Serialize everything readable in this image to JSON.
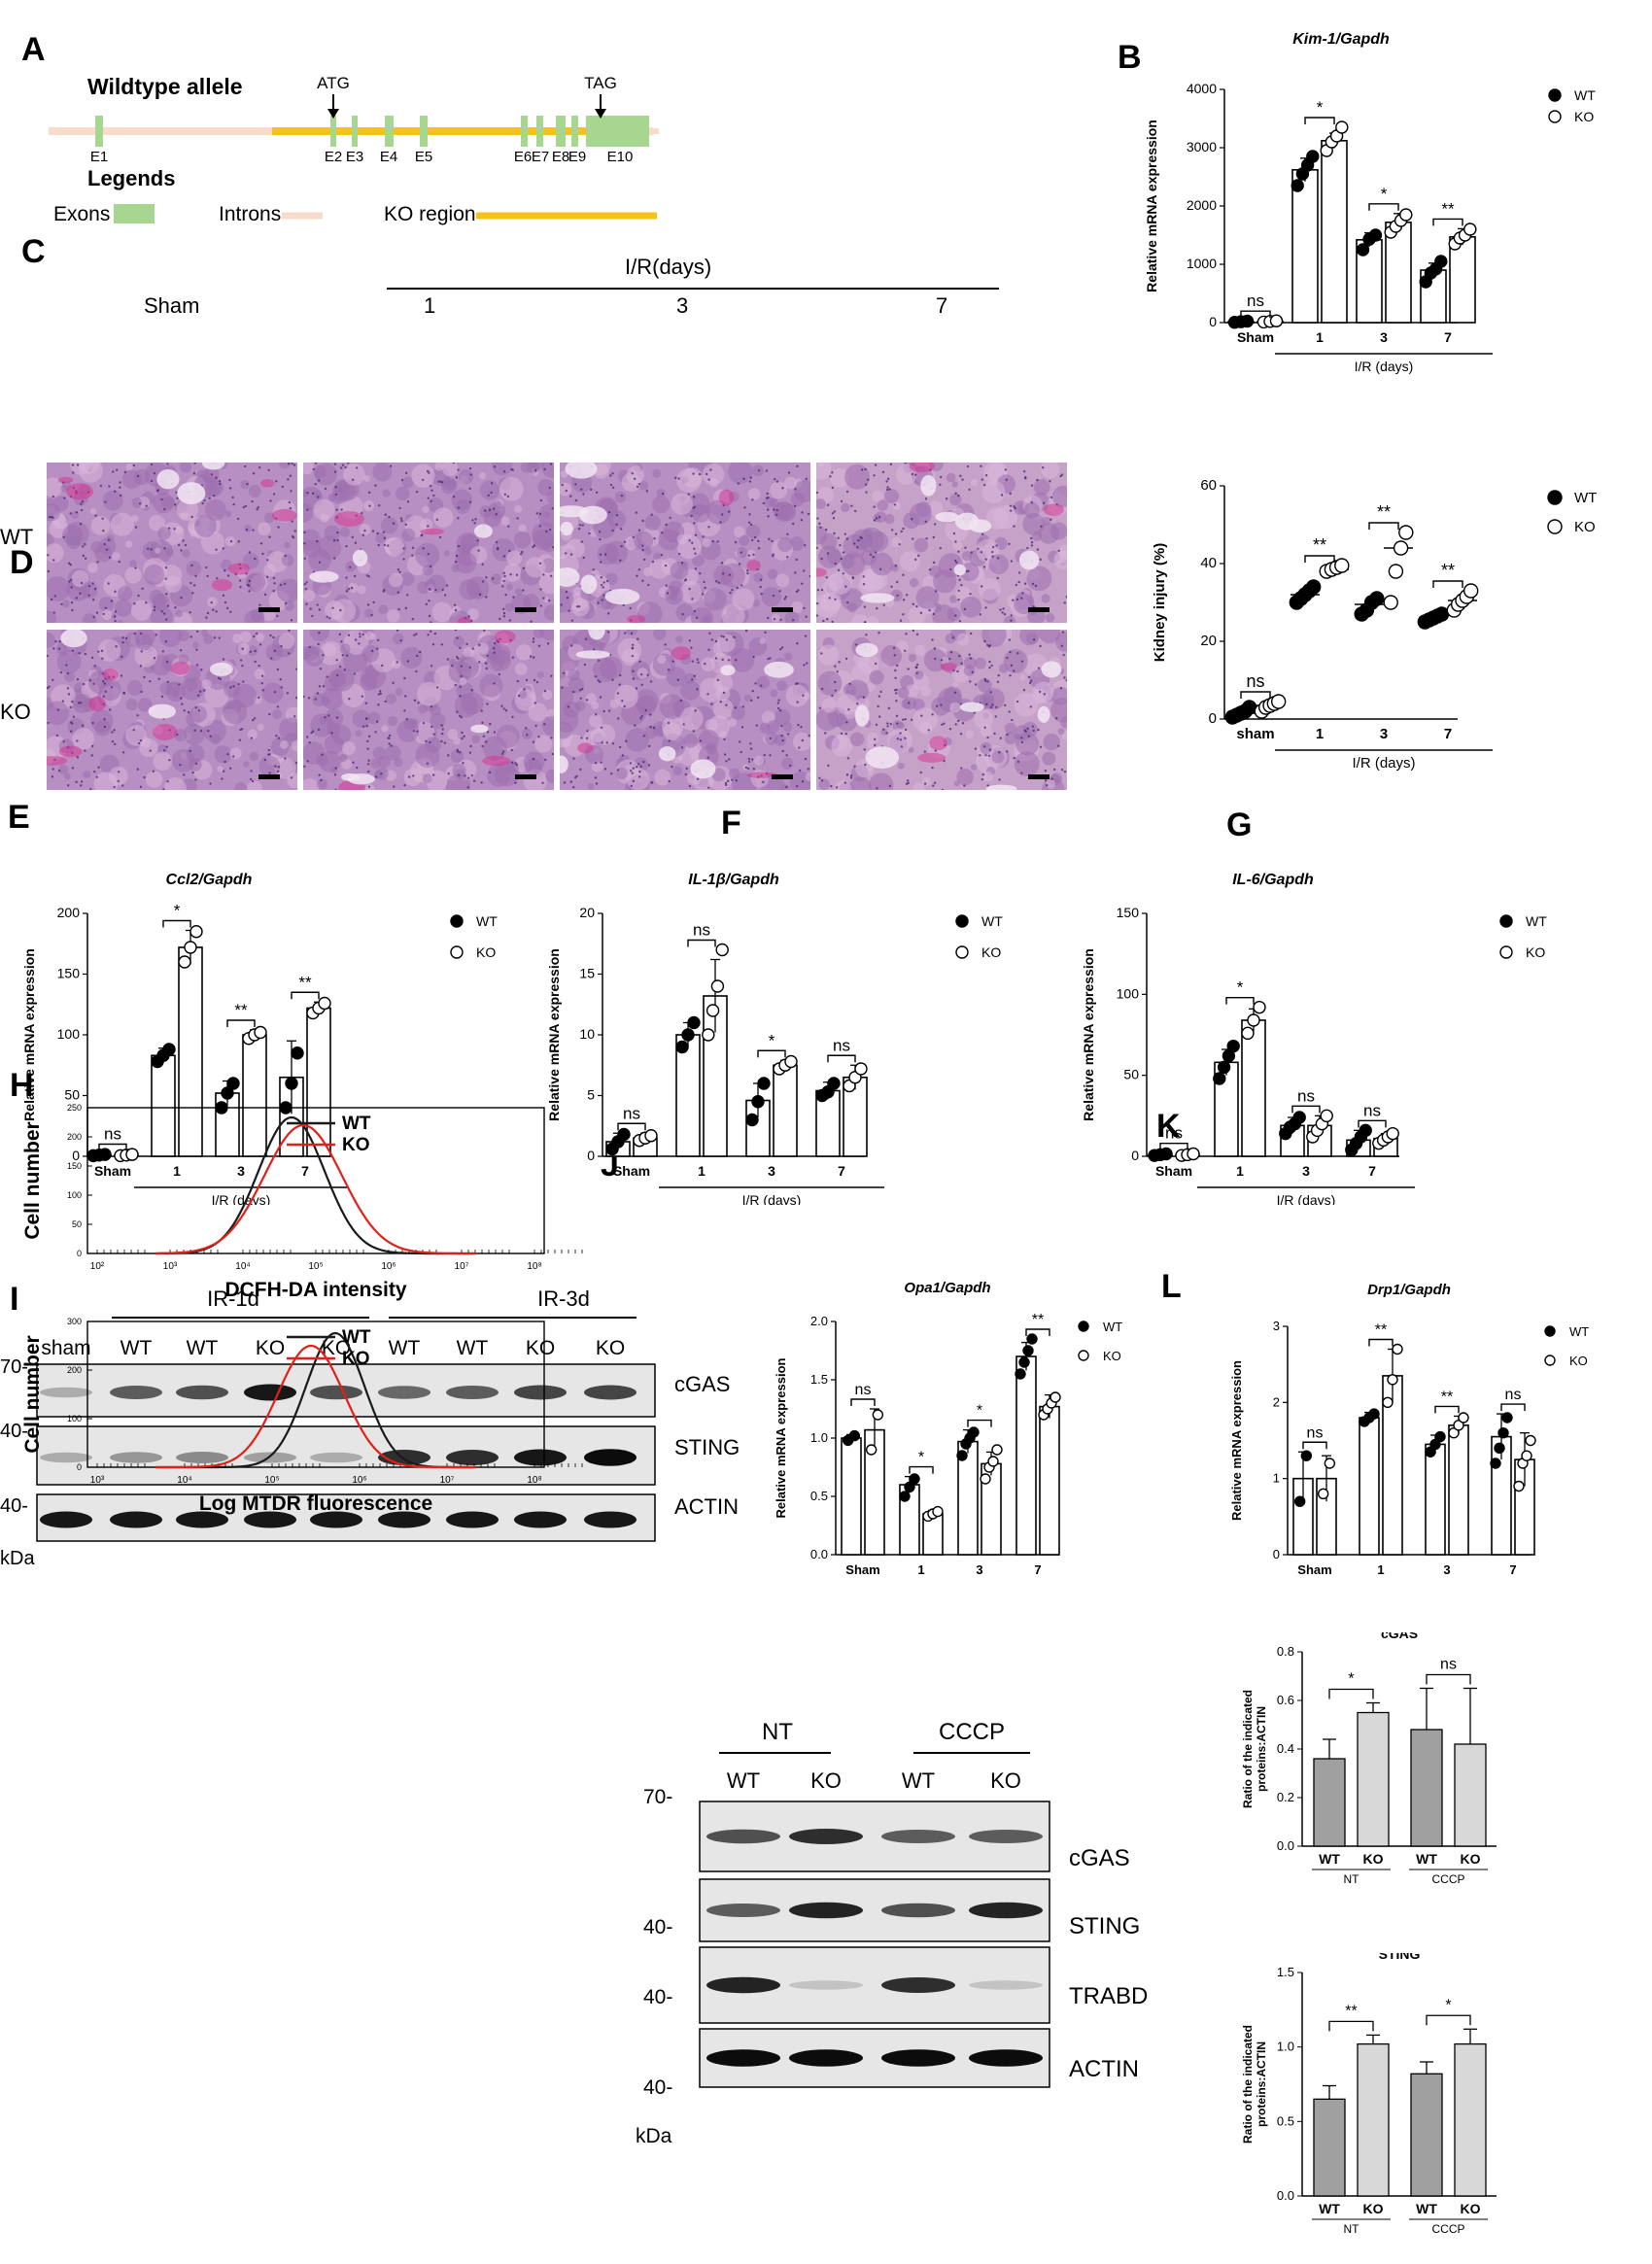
{
  "figure": {
    "panel_labels": {
      "A": "A",
      "B": "B",
      "C": "C",
      "D": "D",
      "E": "E",
      "F": "F",
      "G": "G",
      "H": "H",
      "I": "I",
      "J": "J",
      "K": "K",
      "L": "L"
    }
  },
  "panelA": {
    "title": "Wildtype allele",
    "atg": "ATG",
    "tag": "TAG",
    "exons": [
      "E1",
      "E2",
      "E3",
      "E4",
      "E5",
      "E6",
      "E7",
      "E8",
      "E9",
      "E10"
    ],
    "legends_title": "Legends",
    "legend_exons": "Exons",
    "legend_introns": "Introns",
    "legend_ko": "KO region",
    "colors": {
      "exon": "#a6d68f",
      "intron": "#f8dccb",
      "ko": "#f5c21b"
    }
  },
  "panelC": {
    "ir_label": "I/R(days)",
    "columns": [
      "Sham",
      "1",
      "3",
      "7"
    ],
    "rows": [
      "WT",
      "KO"
    ]
  },
  "panelE": {
    "groups": [
      "IR-1d",
      "IR-3d"
    ],
    "lanes": [
      "sham",
      "WT",
      "WT",
      "KO",
      "KO",
      "WT",
      "WT",
      "KO",
      "KO"
    ],
    "markers": [
      "70-",
      "40-",
      "40-"
    ],
    "bands": [
      "cGAS",
      "STING",
      "ACTIN"
    ],
    "unit": "kDa"
  },
  "panelH": {
    "xlabel": "DCFH-DA intensity",
    "ylabel": "Cell number",
    "legend": [
      "WT",
      "KO"
    ],
    "yticks": [
      "0",
      "50",
      "100",
      "150",
      "200",
      "250"
    ],
    "xticks": [
      "10²",
      "10³",
      "10⁴",
      "10⁵",
      "10⁶",
      "10⁷",
      "10⁸"
    ]
  },
  "panelI": {
    "xlabel": "Log MTDR fluorescence",
    "ylabel": "Cell number",
    "legend": [
      "WT",
      "KO"
    ],
    "yticks": [
      "0",
      "100",
      "200",
      "300"
    ],
    "xticks": [
      "10³",
      "10⁴",
      "10⁵",
      "10⁶",
      "10⁷",
      "10⁸"
    ]
  },
  "panelJ": {
    "groups": [
      "NT",
      "CCCP"
    ],
    "lanes": [
      "WT",
      "KO",
      "WT",
      "KO"
    ],
    "markers": [
      "70-",
      "40-",
      "40-",
      "40-"
    ],
    "bands": [
      "cGAS",
      "STING",
      "TRABD",
      "ACTIN"
    ],
    "unit": "kDa"
  },
  "colors": {
    "wt_line": "#1a1a1a",
    "ko_line": "#e0211b",
    "bar_dark": "#a0a0a0",
    "bar_light": "#d8d8d8"
  },
  "chart_data": [
    {
      "id": "B",
      "type": "bar",
      "title": "Kim-1/Gapdh",
      "ylabel": "Relative mRNA expression",
      "xlabel": "I/R (days)",
      "categories": [
        "Sham",
        "1",
        "3",
        "7"
      ],
      "ylim": [
        0,
        4000
      ],
      "yticks": [
        "0",
        "1000",
        "2000",
        "3000",
        "4000"
      ],
      "legend": [
        "WT",
        "KO"
      ],
      "series": [
        {
          "name": "WT",
          "values": [
            15,
            2620,
            1420,
            900
          ]
        },
        {
          "name": "KO",
          "values": [
            20,
            3120,
            1720,
            1470
          ]
        }
      ],
      "errors": [
        [
          10,
          200,
          120,
          120
        ],
        [
          10,
          130,
          150,
          140
        ]
      ],
      "points": [
        [
          [
            5,
            15,
            25
          ],
          [
            2350,
            2550,
            2700,
            2850
          ],
          [
            1250,
            1430,
            1500
          ],
          [
            700,
            850,
            920,
            1050
          ]
        ],
        [
          [
            10,
            20,
            30
          ],
          [
            2950,
            3100,
            3200,
            3350
          ],
          [
            1550,
            1650,
            1750,
            1850
          ],
          [
            1350,
            1450,
            1500,
            1600
          ]
        ]
      ],
      "significance": [
        "ns",
        "*",
        "*",
        "**"
      ]
    },
    {
      "id": "C",
      "type": "scatter",
      "ylabel": "Kidney injury (%)",
      "xlabel": "I/R (days)",
      "categories": [
        "sham",
        "1",
        "3",
        "7"
      ],
      "ylim": [
        0,
        60
      ],
      "yticks": [
        "0",
        "20",
        "40",
        "60"
      ],
      "legend": [
        "WT",
        "KO"
      ],
      "series": [
        {
          "name": "WT",
          "values": [
            1.5,
            32,
            29.5,
            26
          ]
        },
        {
          "name": "KO",
          "values": [
            3.5,
            38.5,
            44,
            30.5
          ]
        }
      ],
      "points": [
        [
          [
            0.5,
            1,
            1.5,
            2,
            3
          ],
          [
            30,
            31,
            32,
            33,
            34
          ],
          [
            27,
            28,
            30,
            31
          ],
          [
            25,
            25.5,
            26,
            26.5,
            27
          ]
        ],
        [
          [
            2,
            3,
            3.5,
            4,
            4.5
          ],
          [
            38,
            38.5,
            39,
            39.5
          ],
          [
            30,
            38,
            44,
            48
          ],
          [
            28,
            29.5,
            30.5,
            31.5,
            33
          ]
        ]
      ],
      "significance": [
        "ns",
        "**",
        "**",
        "**"
      ]
    },
    {
      "id": "D1",
      "type": "bar",
      "title": "Ccl2/Gapdh",
      "ylabel": "Relative mRNA expression",
      "xlabel": "I/R (days)",
      "categories": [
        "Sham",
        "1",
        "3",
        "7"
      ],
      "ylim": [
        0,
        200
      ],
      "yticks": [
        "0",
        "50",
        "100",
        "150",
        "200"
      ],
      "legend": [
        "WT",
        "KO"
      ],
      "series": [
        {
          "name": "WT",
          "values": [
            1,
            83,
            52,
            65
          ]
        },
        {
          "name": "KO",
          "values": [
            1,
            172,
            100,
            122
          ]
        }
      ],
      "errors": [
        [
          1,
          6,
          10,
          30
        ],
        [
          1,
          14,
          4,
          5
        ]
      ],
      "points": [
        [
          [
            0.5,
            1,
            1.5
          ],
          [
            78,
            83,
            88
          ],
          [
            40,
            52,
            60
          ],
          [
            40,
            60,
            85
          ]
        ],
        [
          [
            0.5,
            1,
            1.5
          ],
          [
            160,
            172,
            185
          ],
          [
            97,
            100,
            102
          ],
          [
            118,
            122,
            126
          ]
        ]
      ],
      "significance": [
        "ns",
        "*",
        "**",
        "**"
      ]
    },
    {
      "id": "D2",
      "type": "bar",
      "title": "IL-1β/Gapdh",
      "ylabel": "Relative mRNA expression",
      "xlabel": "I/R (days)",
      "categories": [
        "Sham",
        "1",
        "3",
        "7"
      ],
      "ylim": [
        0,
        20
      ],
      "yticks": [
        "0",
        "5",
        "10",
        "15",
        "20"
      ],
      "legend": [
        "WT",
        "KO"
      ],
      "series": [
        {
          "name": "WT",
          "values": [
            1.2,
            10,
            4.6,
            5.4
          ]
        },
        {
          "name": "KO",
          "values": [
            1.5,
            13.2,
            7.5,
            6.5
          ]
        }
      ],
      "errors": [
        [
          0.7,
          1,
          1.4,
          0.7
        ],
        [
          0.4,
          3,
          0.4,
          1
        ]
      ],
      "points": [
        [
          [
            0.6,
            1.2,
            1.8
          ],
          [
            9,
            10,
            11
          ],
          [
            3,
            4.5,
            6
          ],
          [
            5,
            5.3,
            6
          ]
        ],
        [
          [
            1.3,
            1.5,
            1.7
          ],
          [
            10,
            12,
            14,
            17
          ],
          [
            7.2,
            7.5,
            7.8
          ],
          [
            5.8,
            6.5,
            7.2
          ]
        ]
      ],
      "significance": [
        "ns",
        "ns",
        "*",
        "ns"
      ]
    },
    {
      "id": "D3",
      "type": "bar",
      "title": "IL-6/Gapdh",
      "ylabel": "Relative mRNA expression",
      "xlabel": "I/R (days)",
      "categories": [
        "Sham",
        "1",
        "3",
        "7"
      ],
      "ylim": [
        0,
        150
      ],
      "yticks": [
        "0",
        "50",
        "100",
        "150"
      ],
      "legend": [
        "WT",
        "KO"
      ],
      "series": [
        {
          "name": "WT",
          "values": [
            1,
            58,
            19,
            10
          ]
        },
        {
          "name": "KO",
          "values": [
            1,
            84,
            19,
            11
          ]
        }
      ],
      "errors": [
        [
          1,
          8,
          5,
          6
        ],
        [
          1,
          7,
          6,
          3
        ]
      ],
      "points": [
        [
          [
            0.5,
            1,
            1.5
          ],
          [
            48,
            55,
            62,
            68
          ],
          [
            14,
            18,
            20,
            24
          ],
          [
            4,
            8,
            12,
            16
          ]
        ],
        [
          [
            0.5,
            1,
            1.5
          ],
          [
            76,
            84,
            92
          ],
          [
            12,
            16,
            20,
            25
          ],
          [
            8,
            10,
            12,
            14
          ]
        ]
      ],
      "significance": [
        "ns",
        "*",
        "ns",
        "ns"
      ]
    },
    {
      "id": "F",
      "type": "bar",
      "title": "Opa1/Gapdh",
      "ylabel": "Relative mRNA expression",
      "xlabel": "I/R (days)",
      "categories": [
        "Sham",
        "1",
        "3",
        "7"
      ],
      "ylim": [
        0,
        2.0
      ],
      "yticks": [
        "0.0",
        "0.5",
        "1.0",
        "1.5",
        "2.0"
      ],
      "legend": [
        "WT",
        "KO"
      ],
      "series": [
        {
          "name": "WT",
          "values": [
            1.0,
            0.6,
            0.97,
            1.7
          ]
        },
        {
          "name": "KO",
          "values": [
            1.07,
            0.35,
            0.78,
            1.27
          ]
        }
      ],
      "errors": [
        [
          0.03,
          0.07,
          0.1,
          0.12
        ],
        [
          0.18,
          0.03,
          0.1,
          0.1
        ]
      ],
      "points": [
        [
          [
            0.98,
            1.02
          ],
          [
            0.5,
            0.58,
            0.65
          ],
          [
            0.85,
            0.95,
            1.0,
            1.05
          ],
          [
            1.55,
            1.65,
            1.75,
            1.85
          ]
        ],
        [
          [
            0.9,
            1.2
          ],
          [
            0.33,
            0.35,
            0.37
          ],
          [
            0.65,
            0.75,
            0.8,
            0.9
          ],
          [
            1.2,
            1.25,
            1.3,
            1.35
          ]
        ]
      ],
      "significance": [
        "ns",
        "*",
        "*",
        "**"
      ]
    },
    {
      "id": "G",
      "type": "bar",
      "title": "Drp1/Gapdh",
      "ylabel": "Relative mRNA expression",
      "xlabel": "I/R (days)",
      "categories": [
        "Sham",
        "1",
        "3",
        "7"
      ],
      "ylim": [
        0,
        3
      ],
      "yticks": [
        "0",
        "1",
        "2",
        "3"
      ],
      "legend": [
        "WT",
        "KO"
      ],
      "series": [
        {
          "name": "WT",
          "values": [
            1.0,
            1.8,
            1.45,
            1.55
          ]
        },
        {
          "name": "KO",
          "values": [
            1.0,
            2.35,
            1.7,
            1.25
          ]
        }
      ],
      "errors": [
        [
          0.35,
          0.07,
          0.12,
          0.3
        ],
        [
          0.3,
          0.35,
          0.12,
          0.35
        ]
      ],
      "points": [
        [
          [
            0.7,
            1.3
          ],
          [
            1.75,
            1.8,
            1.85
          ],
          [
            1.35,
            1.45,
            1.55
          ],
          [
            1.2,
            1.4,
            1.6,
            1.8
          ]
        ],
        [
          [
            0.8,
            1.2
          ],
          [
            2.0,
            2.3,
            2.7
          ],
          [
            1.6,
            1.7,
            1.8
          ],
          [
            0.9,
            1.2,
            1.3,
            1.5
          ]
        ]
      ],
      "significance": [
        "ns",
        "**",
        "**",
        "ns"
      ]
    },
    {
      "id": "K",
      "type": "bar",
      "title": "cGAS",
      "ylabel": "Ratio of the indicated proteins:ACTIN",
      "categories": [
        "WT",
        "KO",
        "WT",
        "KO"
      ],
      "groups": [
        "NT",
        "CCCP"
      ],
      "ylim": [
        0,
        0.8
      ],
      "yticks": [
        "0.0",
        "0.2",
        "0.4",
        "0.6",
        "0.8"
      ],
      "values": [
        0.36,
        0.55,
        0.48,
        0.42
      ],
      "errors": [
        0.08,
        0.04,
        0.17,
        0.23
      ],
      "significance": [
        "*",
        "ns"
      ]
    },
    {
      "id": "L",
      "type": "bar",
      "title": "STING",
      "ylabel": "Ratio of the indicated proteins:ACTIN",
      "categories": [
        "WT",
        "KO",
        "WT",
        "KO"
      ],
      "groups": [
        "NT",
        "CCCP"
      ],
      "ylim": [
        0,
        1.5
      ],
      "yticks": [
        "0.0",
        "0.5",
        "1.0",
        "1.5"
      ],
      "values": [
        0.65,
        1.02,
        0.82,
        1.02
      ],
      "errors": [
        0.09,
        0.06,
        0.08,
        0.1
      ],
      "significance": [
        "**",
        "*"
      ]
    }
  ]
}
